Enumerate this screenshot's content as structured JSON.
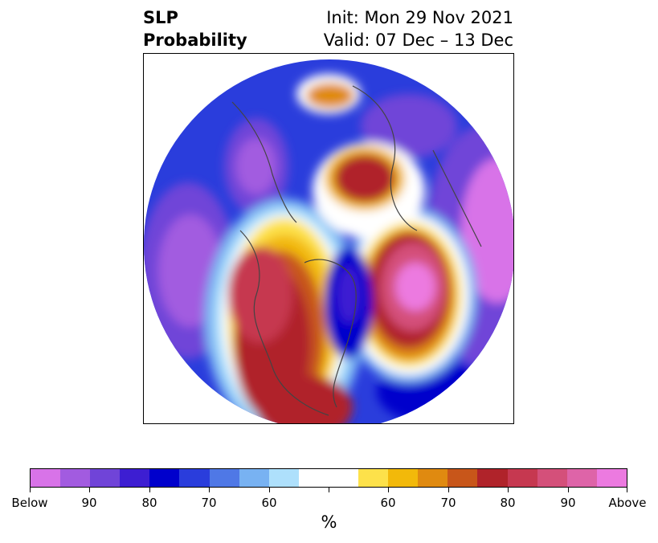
{
  "title": {
    "line1": "SLP",
    "line2": "Probability"
  },
  "info": {
    "init": "Init: Mon 29 Nov 2021",
    "valid": "Valid: 07 Dec – 13 Dec"
  },
  "colorbar": {
    "colors": [
      "#d873e8",
      "#a25be0",
      "#7044d8",
      "#3d1ed2",
      "#0000cc",
      "#2a3ddc",
      "#4f78e6",
      "#78b2f2",
      "#aee0fc",
      "#ffffff",
      "#ffffff",
      "#fde14a",
      "#f2b90a",
      "#e08a10",
      "#c8561a",
      "#b0232a",
      "#c63850",
      "#d4507a",
      "#de64a8",
      "#ec7ae0"
    ],
    "tick_labels": [
      "Below",
      "90",
      "80",
      "70",
      "60",
      "",
      "60",
      "70",
      "80",
      "90",
      "Above"
    ],
    "unit": "%"
  },
  "map": {
    "projection": "north polar stereographic",
    "low_probability_color": "#3d1ed2",
    "high_probability_color": "#b0232a"
  }
}
